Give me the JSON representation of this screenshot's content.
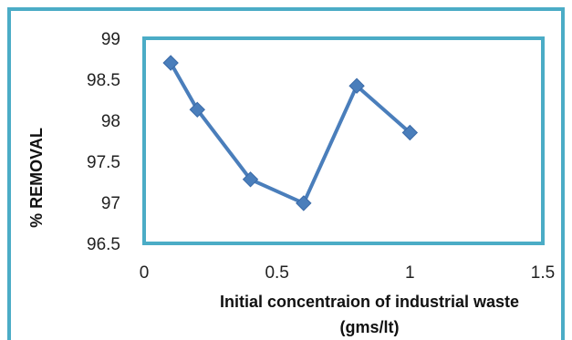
{
  "chart_data": {
    "type": "line",
    "title": "",
    "xlabel_lines": [
      "Initial concentraion of industrial waste",
      "(gms/lt)"
    ],
    "ylabel": "% REMOVAL",
    "xlim": [
      0,
      1.5
    ],
    "ylim": [
      96.5,
      99
    ],
    "x_ticks": [
      "0",
      "0.5",
      "1",
      "1.5"
    ],
    "y_ticks": [
      "96.5",
      "97",
      "97.5",
      "98",
      "98.5",
      "99"
    ],
    "grid": false,
    "legend": "none",
    "series": [
      {
        "x": [
          0.1,
          0.2,
          0.4,
          0.6,
          0.8,
          1.0
        ],
        "y": [
          98.7,
          98.13,
          97.28,
          96.99,
          98.42,
          97.85
        ],
        "color": "#4a7ebb",
        "marker": "diamond"
      }
    ],
    "frame_color": "#4bacc6"
  }
}
